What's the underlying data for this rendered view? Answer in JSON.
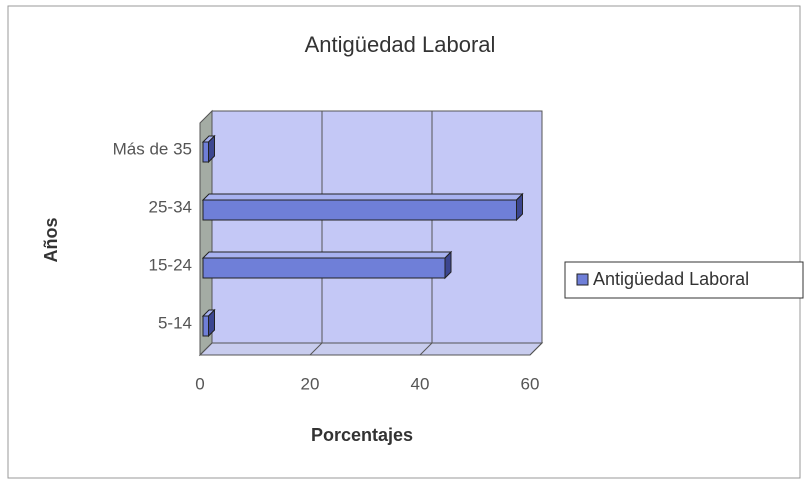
{
  "chart_data": {
    "type": "bar3d_horizontal",
    "title": "Antigüedad Laboral",
    "x_label": "Porcentajes",
    "y_label": "Años",
    "categories": [
      "5-14",
      "15-24",
      "25-34",
      "Más de 35"
    ],
    "series": [
      {
        "name": "Antigüedad Laboral",
        "color": "#6f7fd8",
        "values": [
          1,
          44,
          57,
          1
        ]
      }
    ],
    "xlim": [
      0,
      60
    ],
    "xticks": [
      0,
      20,
      40,
      60
    ],
    "grid": true,
    "legend": "right"
  }
}
